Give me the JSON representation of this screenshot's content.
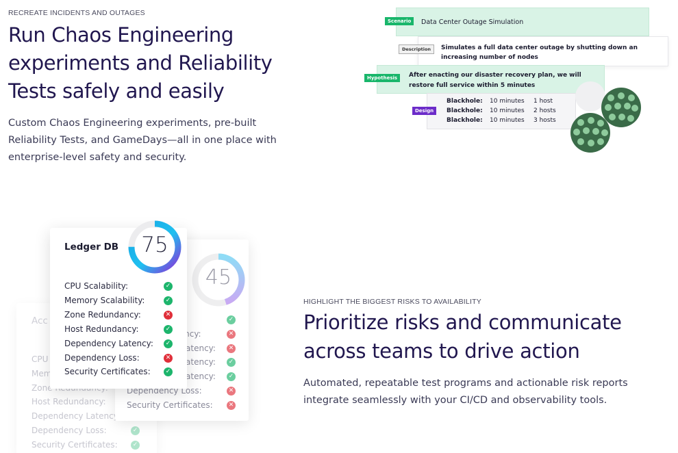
{
  "hero": {
    "eyebrow": "RECREATE INCIDENTS AND OUTAGES",
    "title": "Run Chaos Engineering experiments and Reliability Tests safely and easily",
    "body": "Custom Chaos Engineering experiments, pre-built Reliability Tests, and GameDays—all in one place with enterprise-level safety and security."
  },
  "experiment": {
    "scenario_tag": "Scenario",
    "scenario_text": "Data Center Outage Simulation",
    "description_tag": "Description",
    "description_text": "Simulates a full data center outage by shutting down an increasing number of nodes",
    "hypothesis_tag": "Hypothesis",
    "hypothesis_text": "After enacting our disaster recovery plan, we will restore full service within 5 minutes",
    "design_tag": "Design",
    "design_rows": [
      {
        "attack": "Blackhole:",
        "duration": "10 minutes",
        "hosts": "1 host"
      },
      {
        "attack": "Blackhole:",
        "duration": "10 minutes",
        "hosts": "2 hosts"
      },
      {
        "attack": "Blackhole:",
        "duration": "10 minutes",
        "hosts": "3 hosts"
      }
    ],
    "colors": {
      "green_tag": "#19b66b",
      "purple_tag": "#6c2cc9",
      "cluster": "#3a6b48",
      "node": "#8ecb9c"
    }
  },
  "scorecards": {
    "front": {
      "title": "Ledger DB",
      "score": "75",
      "score_fraction": 0.75,
      "checks": [
        {
          "label": "CPU Scalability:",
          "status": "pass"
        },
        {
          "label": "Memory Scalability:",
          "status": "pass"
        },
        {
          "label": "Zone Redundancy:",
          "status": "fail"
        },
        {
          "label": "Host Redundancy:",
          "status": "pass"
        },
        {
          "label": "Dependency Latency:",
          "status": "pass"
        },
        {
          "label": "Dependency Loss:",
          "status": "fail"
        },
        {
          "label": "Security Certificates:",
          "status": "pass"
        }
      ]
    },
    "middle": {
      "score": "45",
      "score_fraction": 0.45,
      "checks": [
        {
          "label": "",
          "status": "pass"
        },
        {
          "label": "Host Redundancy:",
          "status": "fail"
        },
        {
          "label": "Dependency Latency:",
          "status": "fail"
        },
        {
          "label": "Dependency Latency:",
          "status": "pass"
        },
        {
          "label": "Dependency Latency:",
          "status": "pass"
        },
        {
          "label": "Dependency Loss:",
          "status": "fail"
        },
        {
          "label": "Security Certificates:",
          "status": "fail"
        }
      ]
    },
    "back": {
      "title": "Acc",
      "checks": [
        {
          "label": "CPU",
          "status": "pass"
        },
        {
          "label": "Mem",
          "status": "pass"
        },
        {
          "label": "Zone Redundancy:",
          "status": "pass"
        },
        {
          "label": "Host Redundancy:",
          "status": "pass"
        },
        {
          "label": "Dependency Latency:",
          "status": "pass"
        },
        {
          "label": "Dependency Loss:",
          "status": "pass"
        },
        {
          "label": "Security Certificates:",
          "status": "pass"
        }
      ]
    }
  },
  "risks": {
    "eyebrow": "HIGHLIGHT THE BIGGEST RISKS TO AVAILABILITY",
    "title": "Prioritize risks and communicate across teams to drive action",
    "body": "Automated, repeatable test programs and actionable risk reports integrate seamlessly with your CI/CD and observability tools."
  }
}
